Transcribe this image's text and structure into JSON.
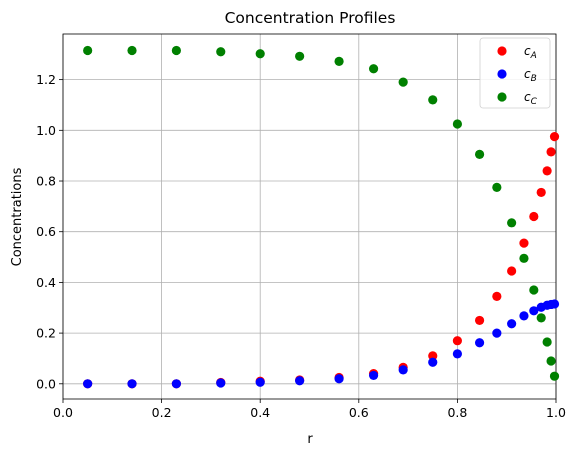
{
  "chart_data": {
    "type": "scatter",
    "title": "Concentration Profiles",
    "xlabel": "r",
    "ylabel": "Concentrations",
    "xlim": [
      0.0,
      1.0
    ],
    "ylim": [
      -0.06,
      1.38
    ],
    "xticks": [
      "0.0",
      "0.2",
      "0.4",
      "0.6",
      "0.8",
      "1.0"
    ],
    "xtick_values": [
      0.0,
      0.2,
      0.4,
      0.6,
      0.8,
      1.0
    ],
    "yticks": [
      "0.0",
      "0.2",
      "0.4",
      "0.6",
      "0.8",
      "1.0",
      "1.2"
    ],
    "ytick_values": [
      0.0,
      0.2,
      0.4,
      0.6,
      0.8,
      1.0,
      1.2
    ],
    "grid": true,
    "legend_position": "top-right",
    "x": [
      0.05,
      0.14,
      0.23,
      0.32,
      0.4,
      0.48,
      0.56,
      0.63,
      0.69,
      0.75,
      0.8,
      0.845,
      0.88,
      0.91,
      0.935,
      0.955,
      0.97,
      0.982,
      0.99,
      0.997
    ],
    "series": [
      {
        "name_main": "c",
        "name_sub": "A",
        "color": "#ff0000",
        "values": [
          0.0,
          0.0,
          0.0,
          0.005,
          0.01,
          0.015,
          0.025,
          0.04,
          0.065,
          0.11,
          0.17,
          0.25,
          0.345,
          0.445,
          0.555,
          0.66,
          0.755,
          0.84,
          0.915,
          0.975
        ]
      },
      {
        "name_main": "c",
        "name_sub": "B",
        "color": "#0000ff",
        "values": [
          0.0,
          0.0,
          0.0,
          0.003,
          0.006,
          0.012,
          0.02,
          0.033,
          0.055,
          0.085,
          0.118,
          0.162,
          0.2,
          0.237,
          0.268,
          0.288,
          0.302,
          0.31,
          0.313,
          0.315
        ]
      },
      {
        "name_main": "c",
        "name_sub": "C",
        "color": "#008000",
        "values": [
          1.315,
          1.315,
          1.315,
          1.31,
          1.302,
          1.292,
          1.272,
          1.243,
          1.19,
          1.12,
          1.025,
          0.905,
          0.775,
          0.635,
          0.495,
          0.37,
          0.26,
          0.165,
          0.09,
          0.03
        ]
      }
    ]
  }
}
